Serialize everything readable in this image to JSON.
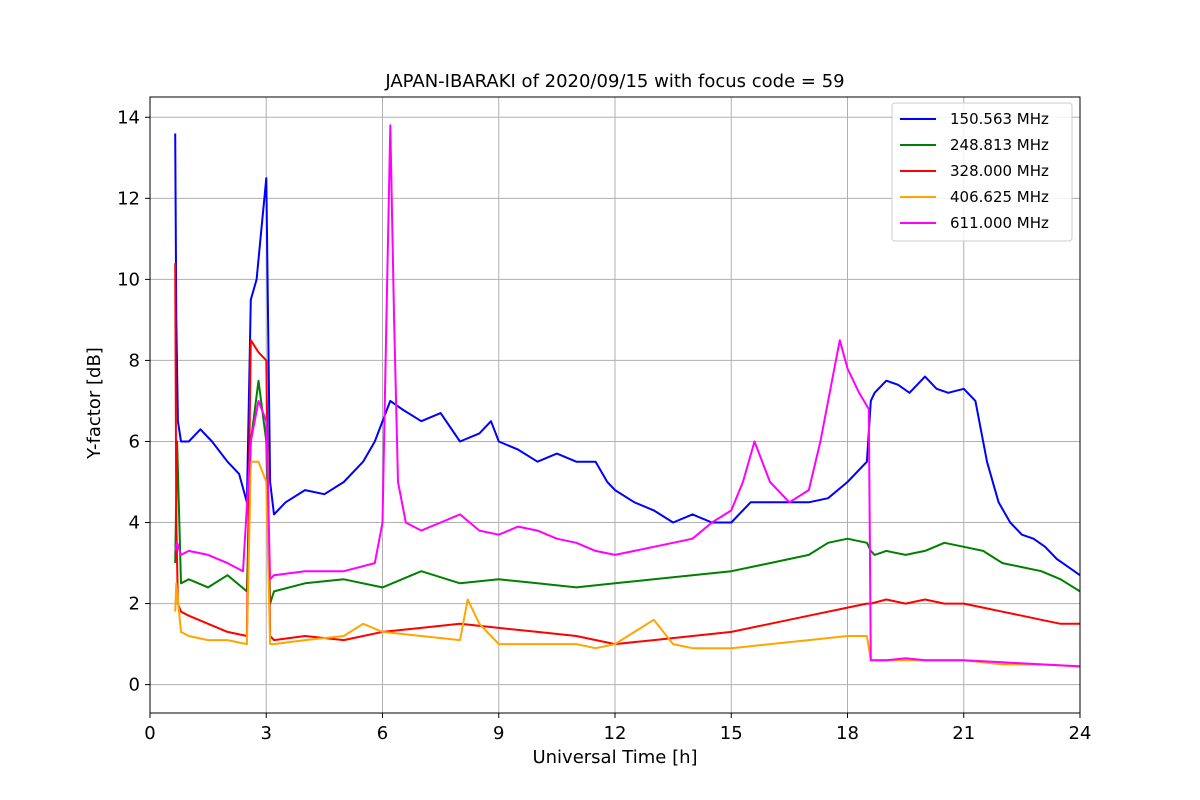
{
  "chart_data": {
    "type": "line",
    "title": "JAPAN-IBARAKI of 2020/09/15 with focus code = 59",
    "xlabel": "Universal Time [h]",
    "ylabel": "Y-factor [dB]",
    "xlim": [
      0,
      24
    ],
    "ylim": [
      -0.7,
      14.5
    ],
    "xticks": [
      0,
      3,
      6,
      9,
      12,
      15,
      18,
      21,
      24
    ],
    "yticks": [
      0,
      2,
      4,
      6,
      8,
      10,
      12,
      14
    ],
    "grid": true,
    "legend_position": "top-right",
    "series": [
      {
        "name": "150.563 MHz",
        "color": "#0000ff",
        "x": [
          0.65,
          0.68,
          0.72,
          0.8,
          1.0,
          1.3,
          1.6,
          2.0,
          2.3,
          2.5,
          2.6,
          2.75,
          2.9,
          3.0,
          3.1,
          3.2,
          3.5,
          4.0,
          4.5,
          5.0,
          5.5,
          5.8,
          6.0,
          6.2,
          6.5,
          7.0,
          7.5,
          8.0,
          8.5,
          8.8,
          9.0,
          9.5,
          10.0,
          10.5,
          11.0,
          11.5,
          11.8,
          12.0,
          12.5,
          13.0,
          13.5,
          14.0,
          14.5,
          15.0,
          15.5,
          16.0,
          16.5,
          17.0,
          17.5,
          18.0,
          18.5,
          18.6,
          18.7,
          19.0,
          19.3,
          19.6,
          20.0,
          20.3,
          20.6,
          21.0,
          21.3,
          21.6,
          21.9,
          22.2,
          22.5,
          22.8,
          23.1,
          23.4,
          23.7,
          24.0
        ],
        "values": [
          13.6,
          9.0,
          6.5,
          6.0,
          6.0,
          6.3,
          6.0,
          5.5,
          5.2,
          4.5,
          9.5,
          10.0,
          11.5,
          12.5,
          5.0,
          4.2,
          4.5,
          4.8,
          4.7,
          5.0,
          5.5,
          6.0,
          6.5,
          7.0,
          6.8,
          6.5,
          6.7,
          6.0,
          6.2,
          6.5,
          6.0,
          5.8,
          5.5,
          5.7,
          5.5,
          5.5,
          5.0,
          4.8,
          4.5,
          4.3,
          4.0,
          4.2,
          4.0,
          4.0,
          4.5,
          4.5,
          4.5,
          4.5,
          4.6,
          5.0,
          5.5,
          7.0,
          7.2,
          7.5,
          7.4,
          7.2,
          7.6,
          7.3,
          7.2,
          7.3,
          7.0,
          5.5,
          4.5,
          4.0,
          3.7,
          3.6,
          3.4,
          3.1,
          2.9,
          2.7
        ]
      },
      {
        "name": "248.813 MHz",
        "color": "#008000",
        "x": [
          0.65,
          0.7,
          0.8,
          1.0,
          1.5,
          2.0,
          2.5,
          2.6,
          2.8,
          3.0,
          3.1,
          3.2,
          4.0,
          5.0,
          6.0,
          7.0,
          8.0,
          9.0,
          10.0,
          11.0,
          12.0,
          13.0,
          14.0,
          15.0,
          16.0,
          17.0,
          17.5,
          18.0,
          18.5,
          18.6,
          18.7,
          19.0,
          19.5,
          20.0,
          20.5,
          21.0,
          21.5,
          22.0,
          22.5,
          23.0,
          23.5,
          24.0
        ],
        "values": [
          3.0,
          6.0,
          2.5,
          2.6,
          2.4,
          2.7,
          2.3,
          6.0,
          7.5,
          6.0,
          2.0,
          2.3,
          2.5,
          2.6,
          2.4,
          2.8,
          2.5,
          2.6,
          2.5,
          2.4,
          2.5,
          2.6,
          2.7,
          2.8,
          3.0,
          3.2,
          3.5,
          3.6,
          3.5,
          3.3,
          3.2,
          3.3,
          3.2,
          3.3,
          3.5,
          3.4,
          3.3,
          3.0,
          2.9,
          2.8,
          2.6,
          2.3
        ]
      },
      {
        "name": "328.000 MHz",
        "color": "#ff0000",
        "x": [
          0.65,
          0.68,
          0.72,
          0.8,
          1.0,
          1.5,
          2.0,
          2.5,
          2.6,
          2.8,
          3.0,
          3.1,
          3.2,
          4.0,
          5.0,
          6.0,
          7.0,
          8.0,
          9.0,
          10.0,
          11.0,
          12.0,
          13.0,
          14.0,
          15.0,
          16.0,
          17.0,
          18.0,
          18.5,
          18.6,
          19.0,
          19.5,
          20.0,
          20.5,
          21.0,
          21.5,
          22.0,
          22.5,
          23.0,
          23.5,
          24.0
        ],
        "values": [
          10.4,
          4.0,
          2.0,
          1.8,
          1.7,
          1.5,
          1.3,
          1.2,
          8.5,
          8.2,
          8.0,
          1.2,
          1.1,
          1.2,
          1.1,
          1.3,
          1.4,
          1.5,
          1.4,
          1.3,
          1.2,
          1.0,
          1.1,
          1.2,
          1.3,
          1.5,
          1.7,
          1.9,
          2.0,
          2.0,
          2.1,
          2.0,
          2.1,
          2.0,
          2.0,
          1.9,
          1.8,
          1.7,
          1.6,
          1.5,
          1.5
        ]
      },
      {
        "name": "406.625 MHz",
        "color": "#ffa500",
        "x": [
          0.65,
          0.68,
          0.8,
          1.0,
          1.5,
          2.0,
          2.5,
          2.6,
          2.8,
          3.0,
          3.1,
          3.2,
          4.0,
          5.0,
          5.5,
          6.0,
          7.0,
          8.0,
          8.2,
          8.5,
          9.0,
          10.0,
          11.0,
          11.5,
          12.0,
          12.5,
          13.0,
          13.5,
          14.0,
          15.0,
          16.0,
          17.0,
          18.0,
          18.5,
          18.6,
          19.0,
          20.0,
          21.0,
          22.0,
          23.0,
          24.0
        ],
        "values": [
          1.8,
          2.5,
          1.3,
          1.2,
          1.1,
          1.1,
          1.0,
          5.5,
          5.5,
          5.0,
          1.0,
          1.0,
          1.1,
          1.2,
          1.5,
          1.3,
          1.2,
          1.1,
          2.1,
          1.5,
          1.0,
          1.0,
          1.0,
          0.9,
          1.0,
          1.3,
          1.6,
          1.0,
          0.9,
          0.9,
          1.0,
          1.1,
          1.2,
          1.2,
          0.6,
          0.6,
          0.6,
          0.6,
          0.5,
          0.5,
          0.45
        ]
      },
      {
        "name": "611.000 MHz",
        "color": "#ff00ff",
        "x": [
          0.65,
          0.7,
          0.8,
          1.0,
          1.5,
          2.0,
          2.4,
          2.6,
          2.8,
          3.0,
          3.1,
          3.2,
          4.0,
          5.0,
          5.8,
          6.0,
          6.1,
          6.2,
          6.3,
          6.4,
          6.6,
          7.0,
          7.5,
          8.0,
          8.5,
          9.0,
          9.5,
          10.0,
          10.5,
          11.0,
          11.5,
          12.0,
          12.5,
          13.0,
          13.5,
          14.0,
          14.5,
          15.0,
          15.3,
          15.6,
          16.0,
          16.5,
          17.0,
          17.3,
          17.6,
          17.8,
          18.0,
          18.3,
          18.55,
          18.6,
          19.0,
          19.5,
          20.0,
          21.0,
          22.0,
          23.0,
          24.0
        ],
        "values": [
          3.3,
          3.5,
          3.2,
          3.3,
          3.2,
          3.0,
          2.8,
          6.0,
          7.0,
          6.5,
          2.6,
          2.7,
          2.8,
          2.8,
          3.0,
          4.0,
          9.0,
          13.8,
          9.0,
          5.0,
          4.0,
          3.8,
          4.0,
          4.2,
          3.8,
          3.7,
          3.9,
          3.8,
          3.6,
          3.5,
          3.3,
          3.2,
          3.3,
          3.4,
          3.5,
          3.6,
          4.0,
          4.3,
          5.0,
          6.0,
          5.0,
          4.5,
          4.8,
          6.0,
          7.5,
          8.5,
          7.8,
          7.2,
          6.8,
          0.6,
          0.6,
          0.65,
          0.6,
          0.6,
          0.55,
          0.5,
          0.45
        ]
      }
    ]
  }
}
